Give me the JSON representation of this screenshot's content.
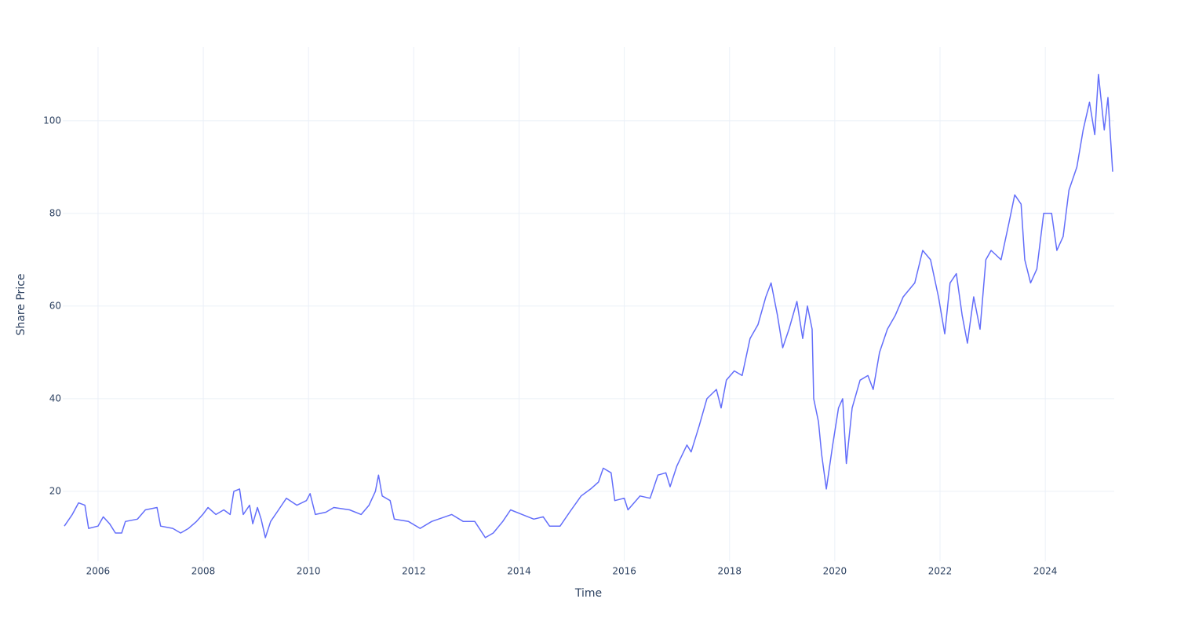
{
  "chart_data": {
    "type": "line",
    "x_label": "Time",
    "y_label": "Share Price",
    "xlim": [
      2005.33,
      2025.31
    ],
    "ylim": [
      4.9,
      115.9
    ],
    "xticks": [
      2006,
      2008,
      2010,
      2012,
      2014,
      2016,
      2018,
      2020,
      2022,
      2024
    ],
    "yticks": [
      20,
      40,
      60,
      80,
      100
    ],
    "grid": true,
    "x": [
      2005.36,
      2005.51,
      2005.63,
      2005.75,
      2005.82,
      2006.0,
      2006.1,
      2006.22,
      2006.33,
      2006.45,
      2006.52,
      2006.75,
      2006.9,
      2007.12,
      2007.19,
      2007.42,
      2007.57,
      2007.72,
      2007.87,
      2007.99,
      2008.09,
      2008.24,
      2008.39,
      2008.51,
      2008.58,
      2008.69,
      2008.76,
      2008.88,
      2008.94,
      2009.03,
      2009.1,
      2009.18,
      2009.28,
      2009.43,
      2009.58,
      2009.78,
      2009.96,
      2010.03,
      2010.13,
      2010.33,
      2010.48,
      2010.78,
      2011.0,
      2011.15,
      2011.27,
      2011.33,
      2011.4,
      2011.55,
      2011.63,
      2011.9,
      2012.12,
      2012.34,
      2012.72,
      2012.94,
      2013.16,
      2013.36,
      2013.51,
      2013.69,
      2013.84,
      2014.06,
      2014.28,
      2014.46,
      2014.58,
      2014.78,
      2014.96,
      2015.18,
      2015.36,
      2015.51,
      2015.6,
      2015.75,
      2015.82,
      2016.0,
      2016.07,
      2016.3,
      2016.49,
      2016.64,
      2016.79,
      2016.87,
      2017.0,
      2017.19,
      2017.27,
      2017.42,
      2017.57,
      2017.75,
      2017.84,
      2017.94,
      2018.09,
      2018.24,
      2018.39,
      2018.54,
      2018.69,
      2018.79,
      2018.91,
      2019.01,
      2019.13,
      2019.28,
      2019.39,
      2019.48,
      2019.57,
      2019.6,
      2019.69,
      2019.75,
      2019.84,
      2019.96,
      2020.07,
      2020.15,
      2020.22,
      2020.33,
      2020.48,
      2020.63,
      2020.73,
      2020.85,
      2021.0,
      2021.15,
      2021.3,
      2021.52,
      2021.67,
      2021.82,
      2021.97,
      2022.09,
      2022.19,
      2022.31,
      2022.42,
      2022.52,
      2022.64,
      2022.76,
      2022.87,
      2022.97,
      2023.16,
      2023.31,
      2023.42,
      2023.54,
      2023.61,
      2023.72,
      2023.84,
      2023.97,
      2024.12,
      2024.22,
      2024.34,
      2024.45,
      2024.6,
      2024.72,
      2024.84,
      2024.94,
      2025.01,
      2025.12,
      2025.19,
      2025.28
    ],
    "series": [
      {
        "name": "Share Price",
        "color": "#636efa",
        "values": [
          12.5,
          15,
          17.5,
          17,
          12,
          12.5,
          14.5,
          13,
          11,
          11,
          13.5,
          14,
          16,
          16.5,
          12.5,
          12,
          11,
          12,
          13.5,
          15,
          16.5,
          15,
          16,
          15,
          20,
          20.5,
          15,
          17,
          13,
          16.5,
          14,
          10,
          13.5,
          16,
          18.5,
          17,
          18,
          19.5,
          15,
          15.5,
          16.5,
          16,
          15,
          17,
          20,
          23.5,
          19,
          18,
          14,
          13.5,
          12,
          13.5,
          15,
          13.5,
          13.5,
          10,
          11,
          13.5,
          16,
          15,
          14,
          14.5,
          12.5,
          12.5,
          15.5,
          19,
          20.5,
          22,
          25,
          24,
          18,
          18.5,
          16,
          19,
          18.5,
          23.5,
          24,
          21,
          25.5,
          30,
          28.5,
          34,
          40,
          42,
          38,
          44,
          46,
          45,
          53,
          56,
          62,
          65,
          58,
          51,
          55,
          61,
          53,
          60,
          55,
          40,
          35,
          28,
          20.5,
          30,
          38,
          40,
          26,
          38,
          44,
          45,
          42,
          50,
          55,
          58,
          62,
          65,
          72,
          70,
          62,
          54,
          65,
          67,
          58,
          52,
          62,
          55,
          70,
          72,
          70,
          78,
          84,
          82,
          70,
          65,
          68,
          80,
          80,
          72,
          75,
          85,
          90,
          98,
          104,
          97,
          110,
          98,
          105,
          89
        ]
      }
    ]
  }
}
